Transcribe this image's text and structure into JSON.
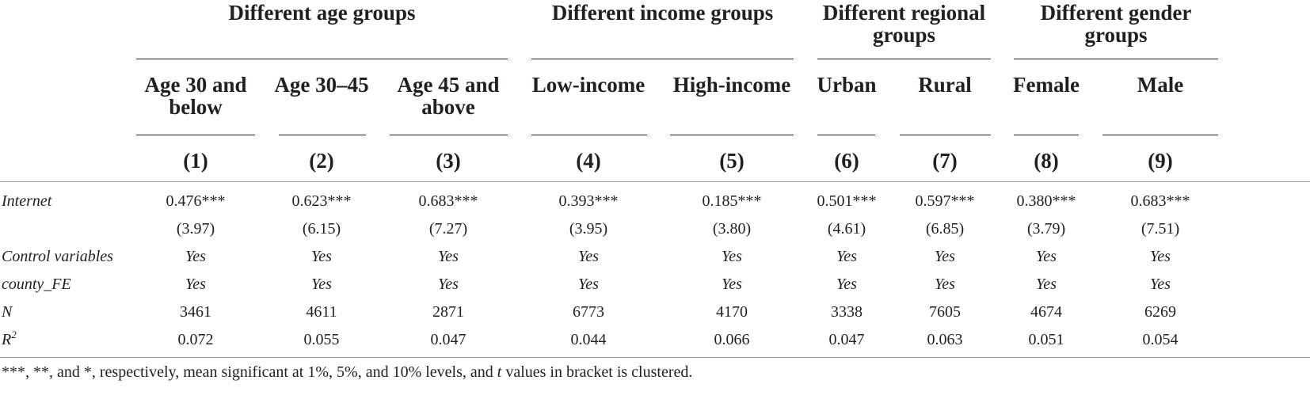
{
  "groups": [
    {
      "label": "Different age groups"
    },
    {
      "label": "Different income groups"
    },
    {
      "label": "Different regional groups"
    },
    {
      "label": "Different gender groups"
    }
  ],
  "columns": [
    {
      "label": "Age 30 and below",
      "num": "(1)"
    },
    {
      "label": "Age 30–45",
      "num": "(2)"
    },
    {
      "label": "Age 45 and above",
      "num": "(3)"
    },
    {
      "label": "Low-income",
      "num": "(4)"
    },
    {
      "label": "High-income",
      "num": "(5)"
    },
    {
      "label": "Urban",
      "num": "(6)"
    },
    {
      "label": "Rural",
      "num": "(7)"
    },
    {
      "label": "Female",
      "num": "(8)"
    },
    {
      "label": "Male",
      "num": "(9)"
    }
  ],
  "rows": [
    {
      "label": "Internet",
      "values": [
        "0.476***",
        "0.623***",
        "0.683***",
        "0.393***",
        "0.185***",
        "0.501***",
        "0.597***",
        "0.380***",
        "0.683***"
      ]
    },
    {
      "label": "",
      "values": [
        "(3.97)",
        "(6.15)",
        "(7.27)",
        "(3.95)",
        "(3.80)",
        "(4.61)",
        "(6.85)",
        "(3.79)",
        "(7.51)"
      ]
    },
    {
      "label": "Control variables",
      "values": [
        "Yes",
        "Yes",
        "Yes",
        "Yes",
        "Yes",
        "Yes",
        "Yes",
        "Yes",
        "Yes"
      ]
    },
    {
      "label": "county_FE",
      "values": [
        "Yes",
        "Yes",
        "Yes",
        "Yes",
        "Yes",
        "Yes",
        "Yes",
        "Yes",
        "Yes"
      ]
    },
    {
      "label": "N",
      "values": [
        "3461",
        "4611",
        "2871",
        "6773",
        "4170",
        "3338",
        "7605",
        "4674",
        "6269"
      ]
    },
    {
      "label": "R",
      "sup": "2",
      "values": [
        "0.072",
        "0.055",
        "0.047",
        "0.044",
        "0.066",
        "0.047",
        "0.063",
        "0.051",
        "0.054"
      ]
    }
  ],
  "footnote": {
    "before": "***, **, and *, respectively, mean significant at 1%, 5%, and 10% levels, and ",
    "t": "t",
    "after": " values in bracket is clustered."
  }
}
